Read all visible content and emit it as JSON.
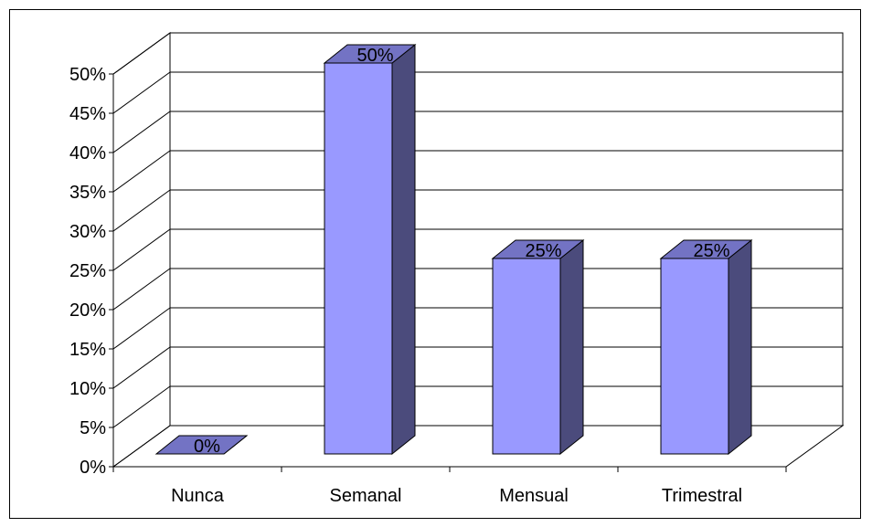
{
  "chart_data": {
    "type": "bar",
    "style": "3d-column",
    "categories": [
      "Nunca",
      "Semanal",
      "Mensual",
      "Trimestral"
    ],
    "values": [
      0,
      50,
      25,
      25
    ],
    "data_labels": [
      "0%",
      "50%",
      "25%",
      "25%"
    ],
    "y_ticks": [
      "0%",
      "5%",
      "10%",
      "15%",
      "20%",
      "25%",
      "30%",
      "35%",
      "40%",
      "45%",
      "50%"
    ],
    "ylim": [
      0,
      50
    ],
    "y_step": 5,
    "grid": true,
    "legend": "none",
    "colors": {
      "bar_front": "#9999ff",
      "bar_side": "#4b4b7c",
      "bar_top": "#7373c4",
      "grid": "#000000",
      "frame": "#000000"
    }
  }
}
